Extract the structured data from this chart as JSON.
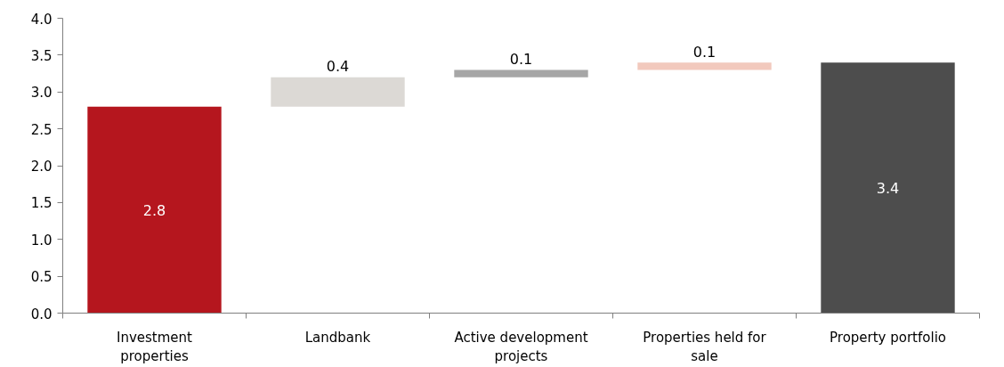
{
  "chart_data": {
    "type": "bar",
    "categories": [
      "Investment properties",
      "Landbank",
      "Active development projects",
      "Properties held for sale",
      "Property portfolio"
    ],
    "values": [
      2.8,
      0.4,
      0.1,
      0.1,
      3.4
    ],
    "base": [
      0,
      2.8,
      3.2,
      3.3,
      0
    ],
    "colors": [
      "#b5161e",
      "#dcd9d5",
      "#a6a6a6",
      "#f2c9bd",
      "#4d4d4d"
    ],
    "data_labels": true,
    "ylim": [
      0,
      4
    ],
    "yticks": [
      {
        "value": 0,
        "label": "0.0"
      },
      {
        "value": 0.5,
        "label": "0.5"
      },
      {
        "value": 1,
        "label": "1.0"
      },
      {
        "value": 1.5,
        "label": "1.5"
      },
      {
        "value": 2,
        "label": "2.0"
      },
      {
        "value": 2.5,
        "label": "2.5"
      },
      {
        "value": 3,
        "label": "3.0"
      },
      {
        "value": 3.5,
        "label": "3.5"
      },
      {
        "value": 4,
        "label": "4.0"
      }
    ],
    "grid": false
  }
}
